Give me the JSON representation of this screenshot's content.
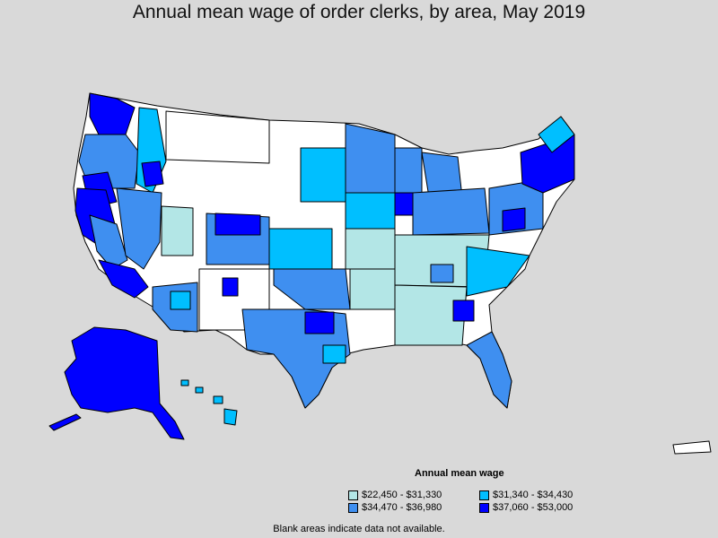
{
  "title": "Annual mean wage of order clerks, by area, May 2019",
  "legend": {
    "title": "Annual mean wage",
    "items": [
      {
        "label": "$22,450 - $31,330",
        "color": "#b3e6e6"
      },
      {
        "label": "$31,340 - $34,430",
        "color": "#00bfff"
      },
      {
        "label": "$34,470 - $36,980",
        "color": "#3f8ff0"
      },
      {
        "label": "$37,060 - $53,000",
        "color": "#0000ff"
      }
    ]
  },
  "note": "Blank areas indicate data not available.",
  "colors": {
    "background": "#d9d9d9",
    "no_data": "#ffffff",
    "border": "#000000"
  }
}
